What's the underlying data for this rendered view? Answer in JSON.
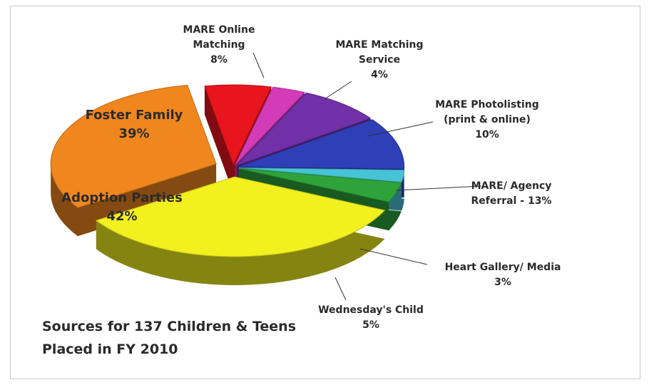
{
  "chart_data": {
    "type": "pie",
    "title": [
      "Sources for 137 Children & Teens",
      "Placed in FY 2010"
    ],
    "slices": [
      {
        "label_lines": [
          "MARE Online",
          "Matching",
          "8%"
        ],
        "value": 8,
        "color": "#e8141e"
      },
      {
        "label_lines": [
          "MARE Matching",
          "Service",
          "4%"
        ],
        "value": 4,
        "color": "#d43bb8"
      },
      {
        "label_lines": [
          "MARE Photolisting",
          "(print & online)",
          "10%"
        ],
        "value": 10,
        "color": "#7030a8"
      },
      {
        "label_lines": [
          "MARE/ Agency",
          "Referral - 13%"
        ],
        "value": 13,
        "color": "#2f3fb8"
      },
      {
        "label_lines": [
          "Heart Gallery/ Media",
          "3%"
        ],
        "value": 3,
        "color": "#46c4d6"
      },
      {
        "label_lines": [
          "Wednesday's Child",
          "5%"
        ],
        "value": 5,
        "color": "#2ea33a"
      },
      {
        "label_lines": [
          "Adoption Parties",
          "42%"
        ],
        "value": 42,
        "color": "#f2f01e"
      },
      {
        "label_lines": [
          "Foster Family",
          "39%"
        ],
        "value": 39,
        "color": "#f0861e"
      }
    ]
  }
}
